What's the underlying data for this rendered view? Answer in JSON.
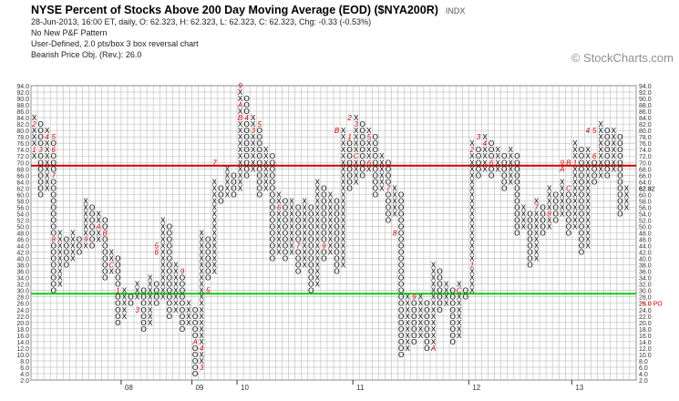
{
  "header": {
    "title": "NYSE Percent of Stocks Above 200 Day Moving Average (EOD) ($NYA200R)",
    "exchange": "INDX",
    "line1": "28-Jun-2013, 16:00 ET, daily, O: 62.323, H: 62.323, L: 62.323, C: 62.323, Chg: -0.33 (-0.53%)",
    "line2": "No New P&F Pattern",
    "line3": "User-Defined, 2.0 pts/box 3 box reversal chart",
    "line4": "Bearish Price Obj. (Rev.): 26.0"
  },
  "watermark": "© StockCharts.com",
  "chart_data": {
    "type": "point-and-figure",
    "box_size": 2.0,
    "reversal": 3,
    "ylim": [
      2,
      94
    ],
    "y_ticks": [
      "2.0",
      "4.0",
      "6.0",
      "8.0",
      "10.0",
      "12.0",
      "14.0",
      "16.0",
      "18.0",
      "20.0",
      "22.0",
      "24.0",
      "26.0",
      "28.0",
      "30.0",
      "32.0",
      "34.0",
      "36.0",
      "38.0",
      "40.0",
      "42.0",
      "44.0",
      "46.0",
      "48.0",
      "50.0",
      "52.0",
      "54.0",
      "56.0",
      "58.0",
      "60.0",
      "62.0",
      "64.0",
      "66.0",
      "68.0",
      "70.0",
      "72.0",
      "74.0",
      "76.0",
      "78.0",
      "80.0",
      "82.0",
      "84.0",
      "86.0",
      "88.0",
      "90.0",
      "92.0",
      "94.0"
    ],
    "x_ticks": [
      {
        "label": "08",
        "col": 14
      },
      {
        "label": "09",
        "col": 25
      },
      {
        "label": "10",
        "col": 32
      },
      {
        "label": "11",
        "col": 50
      },
      {
        "label": "12",
        "col": 68
      },
      {
        "label": "13",
        "col": 84
      }
    ],
    "lines": [
      {
        "name": "resistance",
        "value": 69,
        "color": "#cc0000"
      },
      {
        "name": "support",
        "value": 29,
        "color": "#11cc11"
      }
    ],
    "last_price": "62.32",
    "price_objective": "26.0 PO",
    "columns": [
      {
        "t": "X",
        "lo": 72,
        "hi": 84
      },
      {
        "t": "O",
        "lo": 60,
        "hi": 82
      },
      {
        "t": "X",
        "lo": 62,
        "hi": 80
      },
      {
        "t": "O",
        "lo": 30,
        "hi": 78
      },
      {
        "t": "X",
        "lo": 32,
        "hi": 48
      },
      {
        "t": "O",
        "lo": 38,
        "hi": 46
      },
      {
        "t": "X",
        "lo": 40,
        "hi": 48
      },
      {
        "t": "O",
        "lo": 42,
        "hi": 46
      },
      {
        "t": "X",
        "lo": 44,
        "hi": 58
      },
      {
        "t": "O",
        "lo": 44,
        "hi": 56
      },
      {
        "t": "X",
        "lo": 46,
        "hi": 54
      },
      {
        "t": "O",
        "lo": 34,
        "hi": 52
      },
      {
        "t": "X",
        "lo": 36,
        "hi": 42
      },
      {
        "t": "O",
        "lo": 20,
        "hi": 40
      },
      {
        "t": "X",
        "lo": 22,
        "hi": 30
      },
      {
        "t": "O",
        "lo": 26,
        "hi": 28
      },
      {
        "t": "X",
        "lo": 28,
        "hi": 32
      },
      {
        "t": "O",
        "lo": 18,
        "hi": 30
      },
      {
        "t": "X",
        "lo": 20,
        "hi": 34
      },
      {
        "t": "O",
        "lo": 26,
        "hi": 32
      },
      {
        "t": "X",
        "lo": 28,
        "hi": 52
      },
      {
        "t": "O",
        "lo": 22,
        "hi": 50
      },
      {
        "t": "X",
        "lo": 24,
        "hi": 38
      },
      {
        "t": "O",
        "lo": 18,
        "hi": 36
      },
      {
        "t": "X",
        "lo": 20,
        "hi": 26
      },
      {
        "t": "O",
        "lo": 4,
        "hi": 24
      },
      {
        "t": "X",
        "lo": 6,
        "hi": 48
      },
      {
        "t": "O",
        "lo": 34,
        "hi": 46
      },
      {
        "t": "X",
        "lo": 36,
        "hi": 64
      },
      {
        "t": "O",
        "lo": 58,
        "hi": 62
      },
      {
        "t": "X",
        "lo": 60,
        "hi": 68
      },
      {
        "t": "O",
        "lo": 60,
        "hi": 66
      },
      {
        "t": "X",
        "lo": 62,
        "hi": 92
      },
      {
        "t": "O",
        "lo": 66,
        "hi": 90
      },
      {
        "t": "X",
        "lo": 68,
        "hi": 84
      },
      {
        "t": "O",
        "lo": 60,
        "hi": 82
      },
      {
        "t": "X",
        "lo": 62,
        "hi": 74
      },
      {
        "t": "O",
        "lo": 40,
        "hi": 72
      },
      {
        "t": "X",
        "lo": 42,
        "hi": 60
      },
      {
        "t": "O",
        "lo": 40,
        "hi": 58
      },
      {
        "t": "X",
        "lo": 42,
        "hi": 58
      },
      {
        "t": "O",
        "lo": 36,
        "hi": 56
      },
      {
        "t": "X",
        "lo": 38,
        "hi": 58
      },
      {
        "t": "O",
        "lo": 30,
        "hi": 56
      },
      {
        "t": "X",
        "lo": 32,
        "hi": 64
      },
      {
        "t": "O",
        "lo": 40,
        "hi": 62
      },
      {
        "t": "X",
        "lo": 42,
        "hi": 60
      },
      {
        "t": "O",
        "lo": 36,
        "hi": 58
      },
      {
        "t": "X",
        "lo": 38,
        "hi": 80
      },
      {
        "t": "O",
        "lo": 62,
        "hi": 78
      },
      {
        "t": "X",
        "lo": 64,
        "hi": 84
      },
      {
        "t": "O",
        "lo": 66,
        "hi": 82
      },
      {
        "t": "X",
        "lo": 68,
        "hi": 80
      },
      {
        "t": "O",
        "lo": 60,
        "hi": 78
      },
      {
        "t": "X",
        "lo": 62,
        "hi": 72
      },
      {
        "t": "O",
        "lo": 52,
        "hi": 70
      },
      {
        "t": "X",
        "lo": 54,
        "hi": 62
      },
      {
        "t": "O",
        "lo": 10,
        "hi": 60
      },
      {
        "t": "X",
        "lo": 12,
        "hi": 28
      },
      {
        "t": "O",
        "lo": 14,
        "hi": 26
      },
      {
        "t": "X",
        "lo": 16,
        "hi": 28
      },
      {
        "t": "O",
        "lo": 12,
        "hi": 26
      },
      {
        "t": "X",
        "lo": 14,
        "hi": 38
      },
      {
        "t": "O",
        "lo": 24,
        "hi": 36
      },
      {
        "t": "X",
        "lo": 26,
        "hi": 32
      },
      {
        "t": "O",
        "lo": 14,
        "hi": 30
      },
      {
        "t": "X",
        "lo": 16,
        "hi": 32
      },
      {
        "t": "O",
        "lo": 28,
        "hi": 30
      },
      {
        "t": "X",
        "lo": 30,
        "hi": 76
      },
      {
        "t": "O",
        "lo": 66,
        "hi": 74
      },
      {
        "t": "X",
        "lo": 68,
        "hi": 78
      },
      {
        "t": "O",
        "lo": 66,
        "hi": 76
      },
      {
        "t": "X",
        "lo": 68,
        "hi": 74
      },
      {
        "t": "O",
        "lo": 62,
        "hi": 72
      },
      {
        "t": "X",
        "lo": 64,
        "hi": 74
      },
      {
        "t": "O",
        "lo": 48,
        "hi": 72
      },
      {
        "t": "X",
        "lo": 50,
        "hi": 56
      },
      {
        "t": "O",
        "lo": 38,
        "hi": 54
      },
      {
        "t": "X",
        "lo": 40,
        "hi": 58
      },
      {
        "t": "O",
        "lo": 48,
        "hi": 56
      },
      {
        "t": "X",
        "lo": 50,
        "hi": 62
      },
      {
        "t": "O",
        "lo": 52,
        "hi": 60
      },
      {
        "t": "X",
        "lo": 54,
        "hi": 64
      },
      {
        "t": "O",
        "lo": 48,
        "hi": 62
      },
      {
        "t": "X",
        "lo": 50,
        "hi": 76
      },
      {
        "t": "O",
        "lo": 42,
        "hi": 74
      },
      {
        "t": "X",
        "lo": 44,
        "hi": 74
      },
      {
        "t": "O",
        "lo": 64,
        "hi": 72
      },
      {
        "t": "X",
        "lo": 66,
        "hi": 82
      },
      {
        "t": "O",
        "lo": 66,
        "hi": 80
      },
      {
        "t": "X",
        "lo": 68,
        "hi": 80
      },
      {
        "t": "O",
        "lo": 54,
        "hi": 78
      },
      {
        "t": "X",
        "lo": 56,
        "hi": 62
      }
    ],
    "month_markers": [
      {
        "label": "1",
        "col": 0,
        "v": 74
      },
      {
        "label": "2",
        "col": 0,
        "v": 82
      },
      {
        "label": "3",
        "col": 1,
        "v": 74
      },
      {
        "label": "4",
        "col": 2,
        "v": 78
      },
      {
        "label": "5",
        "col": 3,
        "v": 78
      },
      {
        "label": "6",
        "col": 3,
        "v": 74
      },
      {
        "label": "7",
        "col": 3,
        "v": 66
      },
      {
        "label": "8",
        "col": 3,
        "v": 46
      },
      {
        "label": "9",
        "col": 8,
        "v": 46
      },
      {
        "label": "A",
        "col": 10,
        "v": 50
      },
      {
        "label": "B",
        "col": 11,
        "v": 48
      },
      {
        "label": "C",
        "col": 12,
        "v": 38
      },
      {
        "label": "1",
        "col": 13,
        "v": 30
      },
      {
        "label": "3",
        "col": 16,
        "v": 24
      },
      {
        "label": "5",
        "col": 19,
        "v": 44
      },
      {
        "label": "6",
        "col": 19,
        "v": 42
      },
      {
        "label": "9",
        "col": 23,
        "v": 36
      },
      {
        "label": "A",
        "col": 25,
        "v": 14
      },
      {
        "label": "3",
        "col": 26,
        "v": 6
      },
      {
        "label": "4",
        "col": 26,
        "v": 12
      },
      {
        "label": "5",
        "col": 27,
        "v": 30
      },
      {
        "label": "7",
        "col": 28,
        "v": 70
      },
      {
        "label": "9",
        "col": 32,
        "v": 94
      },
      {
        "label": "A",
        "col": 32,
        "v": 88
      },
      {
        "label": "B",
        "col": 32,
        "v": 84
      },
      {
        "label": "4",
        "col": 33,
        "v": 84
      },
      {
        "label": "3",
        "col": 34,
        "v": 80
      },
      {
        "label": "5",
        "col": 35,
        "v": 82
      },
      {
        "label": "6",
        "col": 38,
        "v": 56
      },
      {
        "label": "7",
        "col": 41,
        "v": 44
      },
      {
        "label": "9",
        "col": 45,
        "v": 44
      },
      {
        "label": "B",
        "col": 47,
        "v": 80
      },
      {
        "label": "2",
        "col": 49,
        "v": 84
      },
      {
        "label": "1",
        "col": 49,
        "v": 78
      },
      {
        "label": "3",
        "col": 50,
        "v": 82
      },
      {
        "label": "C",
        "col": 50,
        "v": 72
      },
      {
        "label": "5",
        "col": 52,
        "v": 78
      },
      {
        "label": "6",
        "col": 52,
        "v": 70
      },
      {
        "label": "7",
        "col": 55,
        "v": 62
      },
      {
        "label": "8",
        "col": 56,
        "v": 48
      },
      {
        "label": "9",
        "col": 59,
        "v": 28
      },
      {
        "label": "A",
        "col": 62,
        "v": 12
      },
      {
        "label": "C",
        "col": 66,
        "v": 30
      },
      {
        "label": "1",
        "col": 68,
        "v": 38
      },
      {
        "label": "2",
        "col": 68,
        "v": 74
      },
      {
        "label": "3",
        "col": 69,
        "v": 78
      },
      {
        "label": "4",
        "col": 70,
        "v": 76
      },
      {
        "label": "6",
        "col": 71,
        "v": 70
      },
      {
        "label": "7",
        "col": 78,
        "v": 56
      },
      {
        "label": "8",
        "col": 80,
        "v": 54
      },
      {
        "label": "9",
        "col": 82,
        "v": 70
      },
      {
        "label": "A",
        "col": 82,
        "v": 68
      },
      {
        "label": "B",
        "col": 83,
        "v": 70
      },
      {
        "label": "C",
        "col": 83,
        "v": 62
      },
      {
        "label": "1",
        "col": 84,
        "v": 70
      },
      {
        "label": "4",
        "col": 86,
        "v": 80
      },
      {
        "label": "5",
        "col": 87,
        "v": 80
      },
      {
        "label": "6",
        "col": 87,
        "v": 72
      }
    ]
  }
}
